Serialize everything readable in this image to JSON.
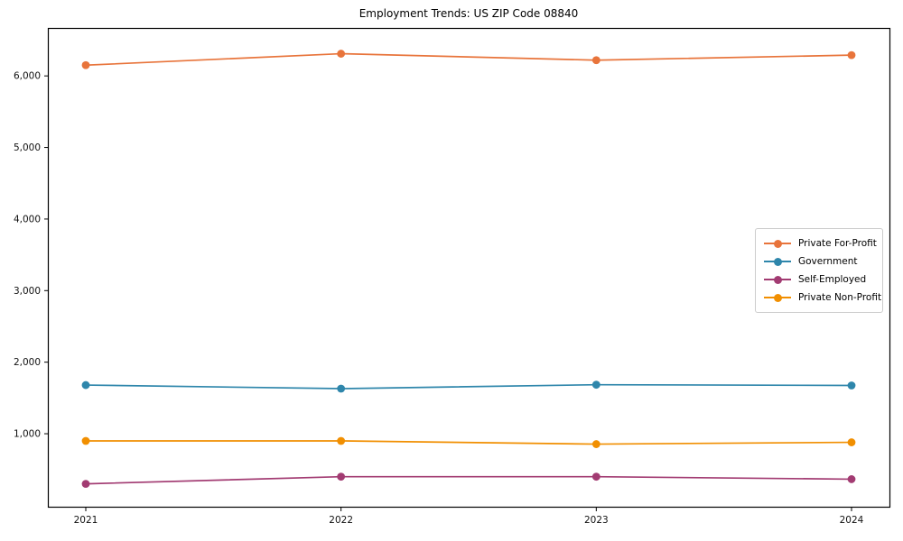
{
  "chart_data": {
    "type": "line",
    "title": "Employment Trends: US ZIP Code 08840",
    "categories": [
      "2021",
      "2022",
      "2023",
      "2024"
    ],
    "series": [
      {
        "name": "Private For-Profit",
        "color": "#E8743B",
        "values": [
          6150,
          6310,
          6220,
          6290
        ]
      },
      {
        "name": "Government",
        "color": "#2E86AB",
        "values": [
          1680,
          1630,
          1685,
          1675
        ]
      },
      {
        "name": "Self-Employed",
        "color": "#A23B72",
        "values": [
          300,
          400,
          400,
          365
        ]
      },
      {
        "name": "Private Non-Profit",
        "color": "#F18F01",
        "values": [
          900,
          900,
          855,
          880
        ]
      }
    ],
    "xlabel": "",
    "ylabel": "",
    "ylim": [
      -20,
      6670
    ],
    "y_ticks": [
      1000,
      2000,
      3000,
      4000,
      5000,
      6000
    ],
    "y_tick_labels": [
      "1,000",
      "2,000",
      "3,000",
      "4,000",
      "5,000",
      "6,000"
    ],
    "grid": false,
    "legend_position": "center-right",
    "marker": "circle",
    "axis_color": "#000000",
    "tick_label_color": "#111111",
    "legend_border_color": "#cccccc"
  }
}
